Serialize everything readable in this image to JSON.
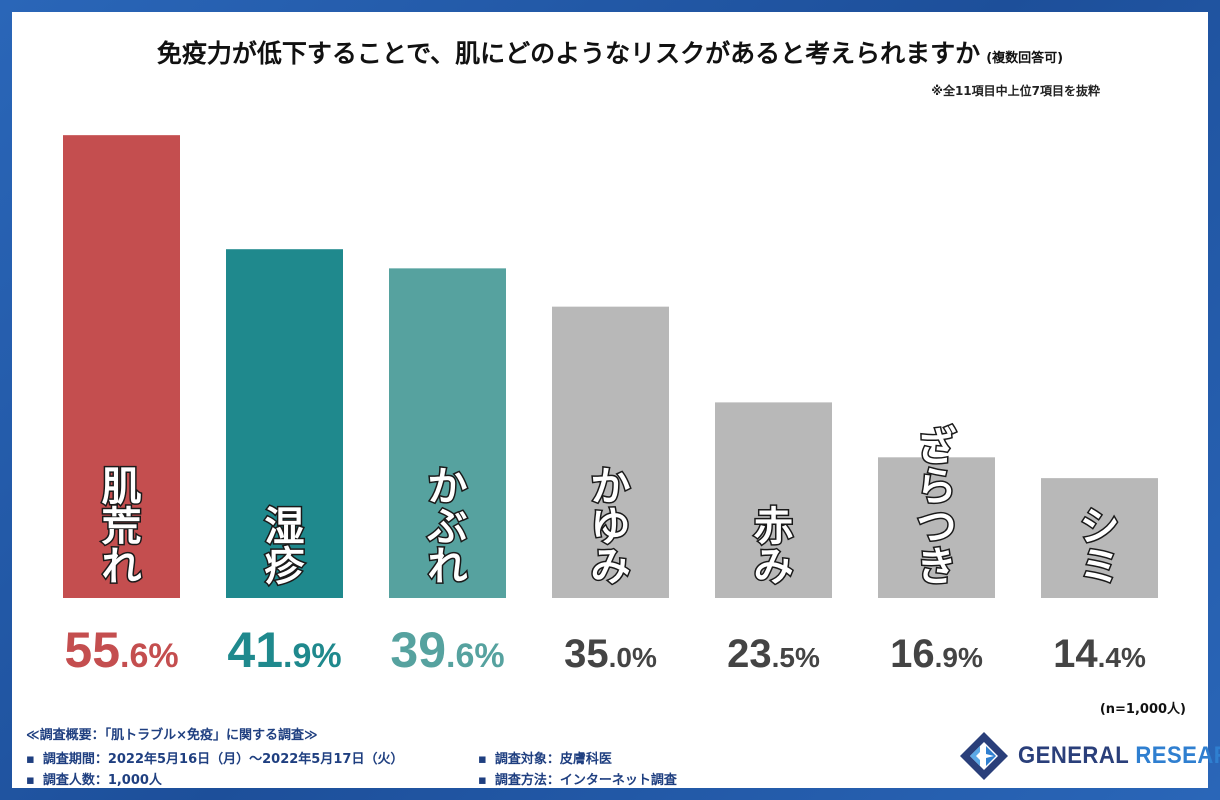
{
  "chart_data": {
    "type": "bar",
    "title": "免疫力が低下することで、肌にどのようなリスクがあると考えられますか",
    "title_note": "(複数回答可)",
    "subtitle": "※全11項目中上位7項目を抜粋",
    "categories": [
      "肌荒れ",
      "湿疹",
      "かぶれ",
      "かゆみ",
      "赤み",
      "ざらつき",
      "シミ"
    ],
    "values": [
      55.6,
      41.9,
      39.6,
      35.0,
      23.5,
      16.9,
      14.4
    ],
    "value_labels": [
      {
        "int": "55",
        "dec": ".6",
        "unit": "%"
      },
      {
        "int": "41",
        "dec": ".9",
        "unit": "%"
      },
      {
        "int": "39",
        "dec": ".6",
        "unit": "%"
      },
      {
        "int": "35",
        "dec": ".0",
        "unit": "%"
      },
      {
        "int": "23",
        "dec": ".5",
        "unit": "%"
      },
      {
        "int": "16",
        "dec": ".9",
        "unit": "%"
      },
      {
        "int": "14",
        "dec": ".4",
        "unit": "%"
      }
    ],
    "bar_colors": [
      "#c44e4f",
      "#1f898d",
      "#56a29f",
      "#b8b8b8",
      "#b8b8b8",
      "#b8b8b8",
      "#b8b8b8"
    ],
    "label_colors": [
      "#c44e4f",
      "#1f898d",
      "#56a29f",
      "#444444",
      "#444444",
      "#444444",
      "#444444"
    ],
    "ylim": [
      0,
      60
    ],
    "sample_note": "(n=1,000人)"
  },
  "survey": {
    "heading": "≪調査概要：「肌トラブル×免疫」に関する調査≫",
    "period": "調査期間：2022年5月16日（月）～2022年5月17日（火）",
    "people": "調査人数：1,000人",
    "target": "調査対象：皮膚科医",
    "method": "調査方法：インターネット調査"
  },
  "brand": {
    "name_part1": "GENERAL ",
    "name_part2": "RESEARCH",
    "color1": "#2a3f7a",
    "color2": "#2f7fd0"
  }
}
